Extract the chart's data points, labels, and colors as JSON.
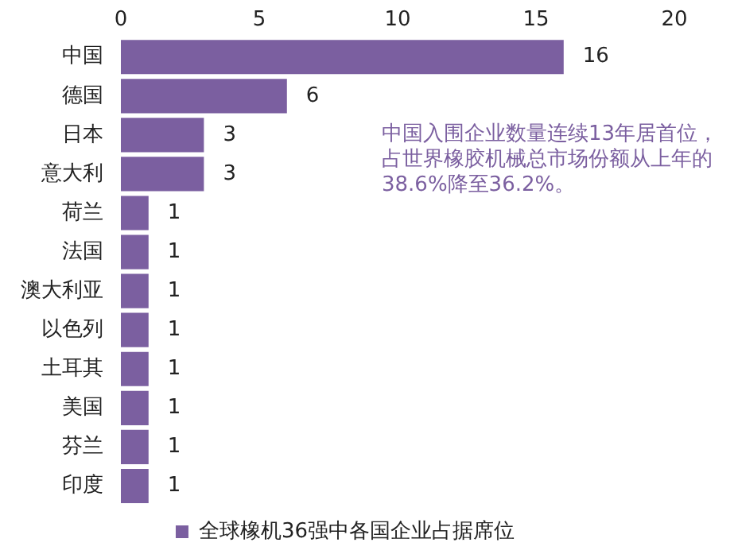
{
  "chart_data": {
    "type": "bar",
    "orientation": "horizontal",
    "categories": [
      "中国",
      "德国",
      "日本",
      "意大利",
      "荷兰",
      "法国",
      "澳大利亚",
      "以色列",
      "土耳其",
      "美国",
      "芬兰",
      "印度"
    ],
    "series": [
      {
        "name": "全球橡机36强中各国企业占据席位",
        "color": "#7b5fa0",
        "values": [
          16,
          6,
          3,
          3,
          1,
          1,
          1,
          1,
          1,
          1,
          1,
          1
        ]
      }
    ],
    "xlim": [
      0,
      20
    ],
    "xticks": [
      0,
      5,
      10,
      15,
      20
    ],
    "grid": false,
    "legend": "bottom",
    "data_labels": true,
    "annotations": [
      "中国入围企业数量连续13年居首位，占世界橡胶机械总市场份额从上年的38.6%降至36.2%。"
    ]
  }
}
